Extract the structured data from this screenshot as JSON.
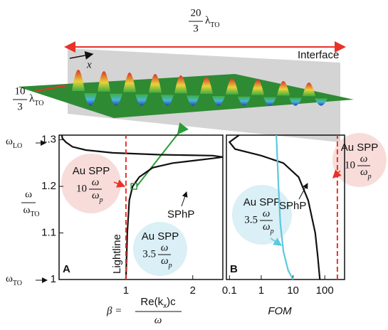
{
  "figure": {
    "top_length": {
      "num": "20",
      "den": "3",
      "symbol": "λ",
      "sub": "TO"
    },
    "side_length": {
      "num": "10",
      "den": "3",
      "symbol": "λ",
      "sub": "TO"
    },
    "axis_name": "x",
    "interface_label": "Interface",
    "y_label": {
      "num": "ω",
      "den": "ω",
      "sub": "TO"
    },
    "top_marker": {
      "symbol": "ω",
      "sub": "LO"
    },
    "bottom_marker": {
      "symbol": "ω",
      "sub": "TO"
    },
    "x_label_a": {
      "lhs": "β =",
      "num": "Re(k",
      "num_sub": "x",
      "num_tail": ")c",
      "den": "ω"
    }
  },
  "chart_data": [
    {
      "type": "line",
      "panel_label": "A",
      "xlim": [
        0,
        2.45
      ],
      "xticks": [
        1,
        2
      ],
      "ylim": [
        1,
        1.31
      ],
      "yticks": [
        1,
        1.1,
        1.2,
        1.3
      ],
      "series": [
        {
          "color": "#111111",
          "dashed": false,
          "x": [
            1.0,
            1.02,
            1.05,
            1.1,
            1.2,
            1.4,
            1.7,
            2.0,
            2.3,
            2.45,
            2.3,
            1.5,
            0.8,
            0.4,
            0.2,
            0.1,
            0.05,
            0.04
          ],
          "values": [
            1.0,
            1.1,
            1.17,
            1.2,
            1.22,
            1.24,
            1.25,
            1.255,
            1.26,
            1.263,
            1.266,
            1.268,
            1.272,
            1.278,
            1.285,
            1.295,
            1.303,
            1.31
          ]
        },
        {
          "color": "#e8322a",
          "dashed": true,
          "x": [
            1,
            1
          ],
          "values": [
            1,
            1.31
          ]
        }
      ],
      "marker": {
        "x": 1.12,
        "y": 1.2,
        "color": "#2a9d3a"
      },
      "curve_label": "SPhP",
      "line_label": "Lightline",
      "annotations": [
        {
          "title": "Au SPP",
          "coef": "10",
          "num": "ω",
          "den": "ω",
          "sub": "p",
          "color": "#f6d6d4"
        },
        {
          "title": "Au SPP",
          "coef": "3.5",
          "num": "ω",
          "den": "ω",
          "sub": "p",
          "color": "#d3ecf5"
        }
      ]
    },
    {
      "type": "line",
      "panel_label": "B",
      "x_label": "FOM",
      "log_x": true,
      "xlim": [
        0.08,
        420
      ],
      "xticks": [
        0.1,
        1,
        10,
        100
      ],
      "ylim": [
        1,
        1.31
      ],
      "series": [
        {
          "color": "#111111",
          "dashed": false,
          "x": [
            0.2,
            0.1,
            0.15,
            1,
            5,
            15,
            30,
            50,
            60,
            70
          ],
          "values": [
            1.31,
            1.295,
            1.28,
            1.266,
            1.25,
            1.22,
            1.17,
            1.1,
            1.05,
            1.0
          ]
        },
        {
          "color": "#5bc8e0",
          "dashed": false,
          "x": [
            3,
            3.5,
            4,
            5,
            7,
            10
          ],
          "values": [
            1.31,
            1.2,
            1.12,
            1.06,
            1.02,
            1.0
          ]
        },
        {
          "color": "#e8322a",
          "dashed": true,
          "x": [
            250,
            250
          ],
          "values": [
            1,
            1.31
          ]
        }
      ],
      "curve_label": "SPhP",
      "annotations": [
        {
          "title": "Au SPP",
          "coef": "3.5",
          "num": "ω",
          "den": "ω",
          "sub": "p",
          "color": "#d3ecf5"
        },
        {
          "title": "Au SPP",
          "coef": "10",
          "num": "ω",
          "den": "ω",
          "sub": "p",
          "color": "#f6d6d4"
        }
      ]
    }
  ]
}
